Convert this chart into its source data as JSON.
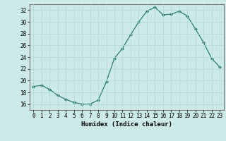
{
  "x": [
    0,
    1,
    2,
    3,
    4,
    5,
    6,
    7,
    8,
    9,
    10,
    11,
    12,
    13,
    14,
    15,
    16,
    17,
    18,
    19,
    20,
    21,
    22,
    23
  ],
  "y": [
    19.0,
    19.2,
    18.5,
    17.5,
    16.8,
    16.3,
    16.0,
    16.0,
    16.7,
    19.8,
    23.8,
    25.5,
    27.8,
    30.0,
    31.8,
    32.5,
    31.2,
    31.3,
    31.8,
    31.0,
    28.8,
    26.5,
    23.8,
    22.3
  ],
  "line_color": "#2e7d6e",
  "marker_color": "#2e7d6e",
  "bg_color": "#cceae8",
  "grid_color": "#b0d8d5",
  "xlabel": "Humidex (Indice chaleur)",
  "ylim": [
    15,
    33
  ],
  "yticks": [
    16,
    18,
    20,
    22,
    24,
    26,
    28,
    30,
    32
  ],
  "xticks": [
    0,
    1,
    2,
    3,
    4,
    5,
    6,
    7,
    8,
    9,
    10,
    11,
    12,
    13,
    14,
    15,
    16,
    17,
    18,
    19,
    20,
    21,
    22,
    23
  ],
  "tick_fontsize": 5.5,
  "xlabel_fontsize": 6.5
}
